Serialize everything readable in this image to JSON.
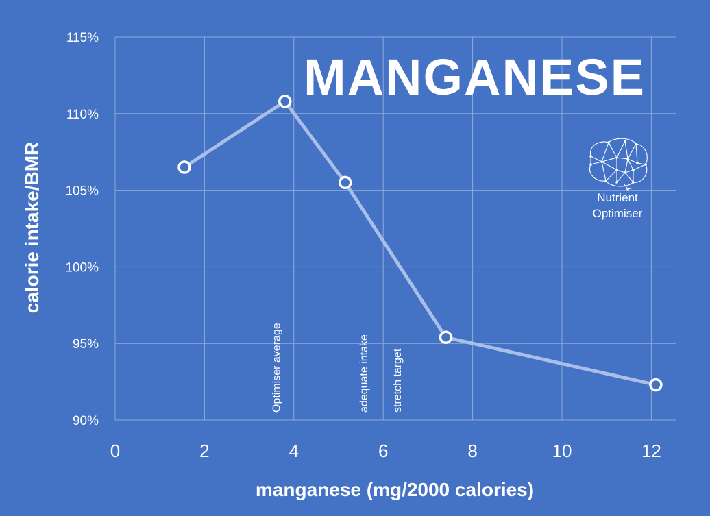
{
  "chart_data": {
    "type": "line",
    "title": "MANGANESE",
    "xlabel": "manganese (mg/2000 calories)",
    "ylabel": "calorie intake/BMR",
    "xlim": [
      0,
      12.5
    ],
    "ylim": [
      90,
      115
    ],
    "x_ticks": [
      0,
      2,
      4,
      6,
      8,
      10,
      12
    ],
    "x_tick_labels": [
      "0",
      "2",
      "4",
      "6",
      "8",
      "10",
      "12"
    ],
    "y_ticks": [
      90,
      95,
      100,
      105,
      110,
      115
    ],
    "y_tick_labels": [
      "90%",
      "95%",
      "100%",
      "105%",
      "110%",
      "115%"
    ],
    "grid": true,
    "series": [
      {
        "x": [
          1.55,
          3.8,
          5.15,
          7.4,
          12.1
        ],
        "y": [
          106.5,
          110.8,
          105.5,
          95.4,
          92.3
        ]
      }
    ],
    "reference_lines": [
      {
        "x": 3.6,
        "label": "Optimiser average"
      },
      {
        "x": 5.55,
        "label": "adequate intake"
      },
      {
        "x": 6.3,
        "label": "stretch target"
      }
    ]
  },
  "logo": {
    "line1": "Nutrient",
    "line2": "Optimiser",
    "icon": "brain-icon"
  },
  "colors": {
    "background": "#4472c4",
    "grid": "#8eaadc",
    "line": "#a9bfe8",
    "marker_fill": "#4472c4",
    "text": "#ffffff"
  }
}
